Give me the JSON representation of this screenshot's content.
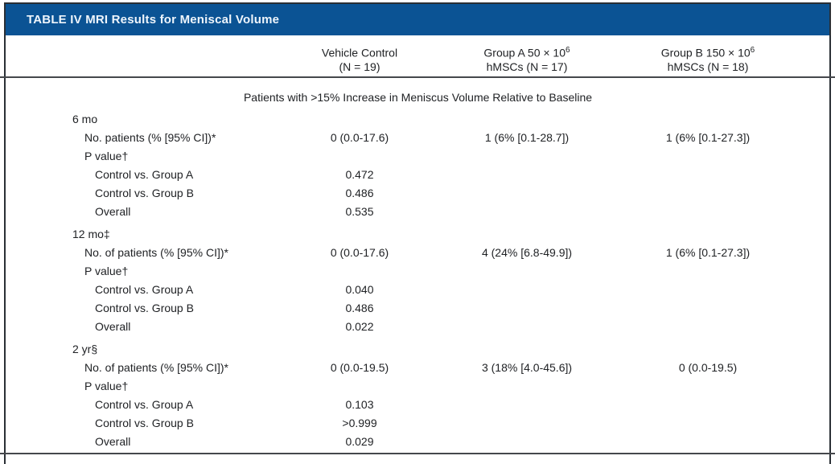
{
  "table": {
    "title": "TABLE IV MRI Results for Meniscal Volume",
    "header_bg": "#0b5394",
    "title_color": "#eef5fc",
    "border_color": "#2a2f35",
    "rule_color": "#45484c",
    "text_color": "#202225",
    "section_header": "Patients with >15% Increase in Meniscus Volume Relative to Baseline",
    "columns": [
      {
        "line1_base": "Vehicle Control",
        "line1_sup": "",
        "line2": "(N = 19)"
      },
      {
        "line1_base": "Group A 50 × 10",
        "line1_sup": "6",
        "line2": "hMSCs (N = 17)"
      },
      {
        "line1_base": "Group B 150 × 10",
        "line1_sup": "6",
        "line2": "hMSCs (N = 18)"
      }
    ]
  },
  "rows": [
    {
      "label": "6 mo",
      "indent": 0,
      "gap": false,
      "values": [
        "",
        "",
        ""
      ]
    },
    {
      "label": "No. patients (% [95% CI])*",
      "indent": 1,
      "gap": false,
      "values": [
        "0 (0.0-17.6)",
        "1 (6% [0.1-28.7])",
        "1 (6% [0.1-27.3])"
      ]
    },
    {
      "label": "P value†",
      "indent": 1,
      "gap": false,
      "values": [
        "",
        "",
        ""
      ]
    },
    {
      "label": "Control vs. Group A",
      "indent": 2,
      "gap": false,
      "values": [
        "0.472",
        "",
        ""
      ]
    },
    {
      "label": "Control vs. Group B",
      "indent": 2,
      "gap": false,
      "values": [
        "0.486",
        "",
        ""
      ]
    },
    {
      "label": "Overall",
      "indent": 2,
      "gap": false,
      "values": [
        "0.535",
        "",
        ""
      ]
    },
    {
      "label": "12 mo‡",
      "indent": 0,
      "gap": true,
      "values": [
        "",
        "",
        ""
      ]
    },
    {
      "label": "No. of patients (% [95% CI])*",
      "indent": 1,
      "gap": false,
      "values": [
        "0 (0.0-17.6)",
        "4 (24% [6.8-49.9])",
        "1 (6% [0.1-27.3])"
      ]
    },
    {
      "label": "P value†",
      "indent": 1,
      "gap": false,
      "values": [
        "",
        "",
        ""
      ]
    },
    {
      "label": "Control vs. Group A",
      "indent": 2,
      "gap": false,
      "values": [
        "0.040",
        "",
        ""
      ]
    },
    {
      "label": "Control vs. Group B",
      "indent": 2,
      "gap": false,
      "values": [
        "0.486",
        "",
        ""
      ]
    },
    {
      "label": "Overall",
      "indent": 2,
      "gap": false,
      "values": [
        "0.022",
        "",
        ""
      ]
    },
    {
      "label": "2 yr§",
      "indent": 0,
      "gap": true,
      "values": [
        "",
        "",
        ""
      ]
    },
    {
      "label": "No. of patients (% [95% CI])*",
      "indent": 1,
      "gap": false,
      "values": [
        "0 (0.0-19.5)",
        "3 (18% [4.0-45.6])",
        "0 (0.0-19.5)"
      ]
    },
    {
      "label": "P value†",
      "indent": 1,
      "gap": false,
      "values": [
        "",
        "",
        ""
      ]
    },
    {
      "label": "Control vs. Group A",
      "indent": 2,
      "gap": false,
      "values": [
        "0.103",
        "",
        ""
      ]
    },
    {
      "label": "Control vs. Group B",
      "indent": 2,
      "gap": false,
      "values": [
        ">0.999",
        "",
        ""
      ]
    },
    {
      "label": "Overall",
      "indent": 2,
      "gap": false,
      "values": [
        "0.029",
        "",
        ""
      ]
    }
  ]
}
